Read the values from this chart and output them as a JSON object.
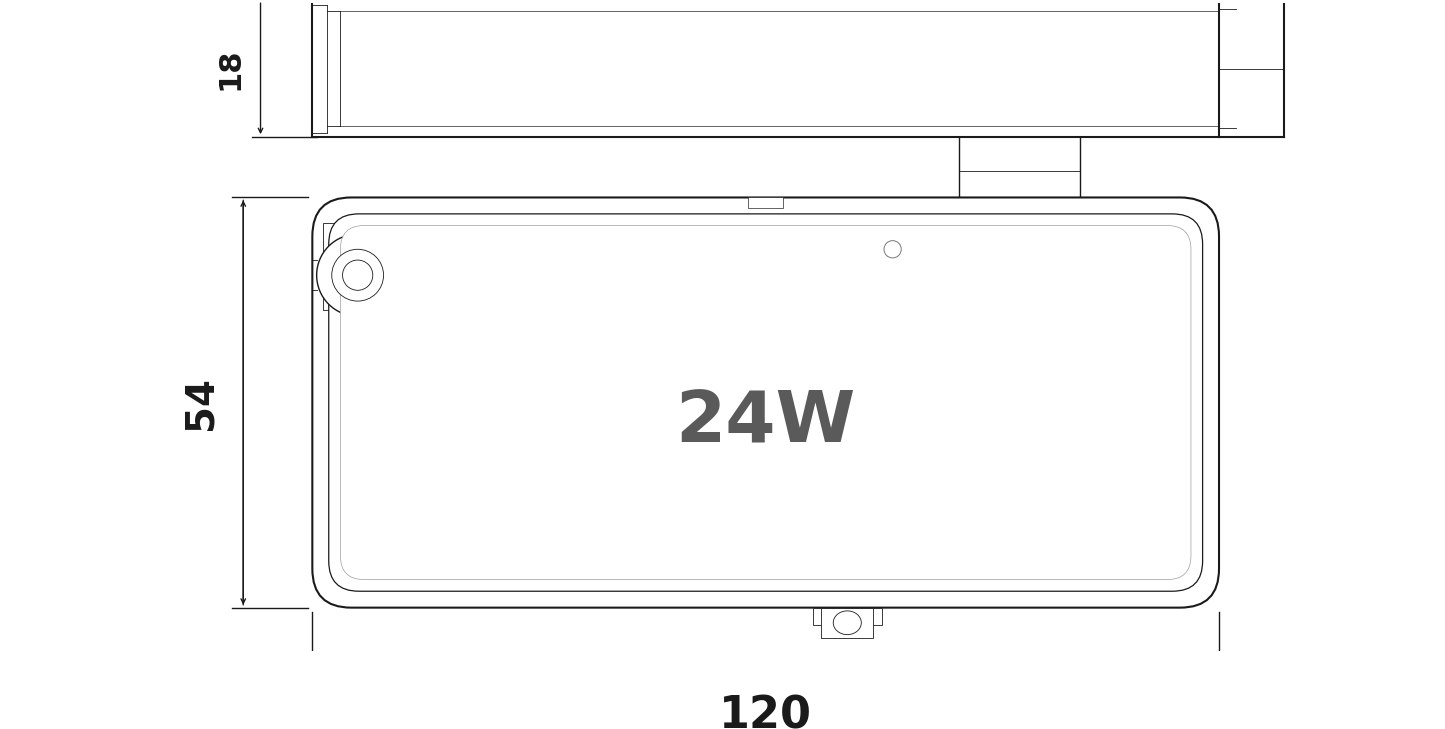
{
  "bg_color": "#ffffff",
  "line_color": "#1a1a1a",
  "dim_color": "#1a1a1a",
  "label_color_24w": "#5a5a5a",
  "fig_width": 14.45,
  "fig_height": 7.29,
  "label_18": "18",
  "label_54": "54",
  "label_120": "120",
  "label_24w": "24W",
  "lw_main": 1.5,
  "lw_med": 1.0,
  "lw_thin": 0.6,
  "lw_dim": 1.0
}
